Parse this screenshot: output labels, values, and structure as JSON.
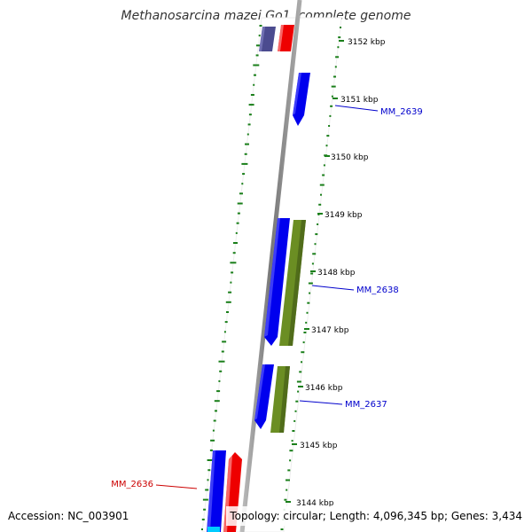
{
  "title": "Methanosarcina mazei Go1, complete genome",
  "footer": {
    "accession": "Accession: NC_003901",
    "summary": "Topology: circular; Length: 4,096,345 bp; Genes: 3,434"
  },
  "ruler": {
    "ticks": [
      "3152 kbp",
      "3151 kbp",
      "3150 kbp",
      "3149 kbp",
      "3148 kbp",
      "3147 kbp",
      "3146 kbp",
      "3145 kbp",
      "3144 kbp"
    ]
  },
  "gene_labels": [
    {
      "label": "MM_2639",
      "color": "#0000cc"
    },
    {
      "label": "MM_2638",
      "color": "#0000cc"
    },
    {
      "label": "MM_2637",
      "color": "#0000cc"
    },
    {
      "label": "MM_2636",
      "color": "#cc0000"
    }
  ],
  "colors": {
    "forward_cds": "#0000ee",
    "reverse_cds": "#ee0000",
    "feature_olive": "#6b8e23",
    "feature_purple": "#4b4b8f",
    "feature_cyan": "#00ccff",
    "gc_dash": "#1a7f1a",
    "backbone": "#888888"
  }
}
